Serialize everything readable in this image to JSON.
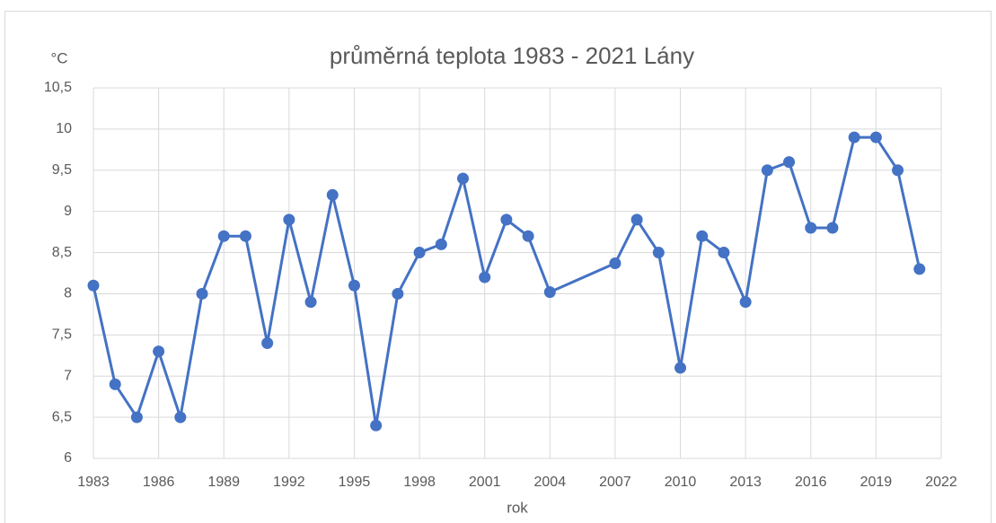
{
  "chart_data": {
    "type": "line",
    "title": "průměrná teplota 1983 - 2021 Lány",
    "y_label": "°C",
    "x_label": "rok",
    "x": [
      1983,
      1984,
      1985,
      1986,
      1987,
      1988,
      1989,
      1990,
      1991,
      1992,
      1993,
      1994,
      1995,
      1996,
      1997,
      1998,
      1999,
      2000,
      2001,
      2002,
      2003,
      2004,
      2007,
      2008,
      2009,
      2010,
      2011,
      2012,
      2013,
      2014,
      2015,
      2016,
      2017,
      2018,
      2019,
      2020,
      2021
    ],
    "series": [
      {
        "name": "průměrná teplota",
        "color": "#4472c4",
        "values": [
          8.1,
          6.9,
          6.5,
          7.3,
          6.5,
          8.0,
          8.7,
          8.7,
          7.4,
          8.9,
          7.9,
          9.2,
          8.1,
          6.4,
          8.0,
          8.5,
          8.6,
          9.4,
          8.2,
          8.9,
          8.7,
          8.02,
          8.37,
          8.9,
          8.5,
          7.1,
          8.7,
          8.5,
          7.9,
          9.5,
          9.6,
          8.8,
          8.8,
          9.9,
          9.9,
          9.5,
          8.3
        ]
      }
    ],
    "xlim": [
      1983,
      2022
    ],
    "xticks": [
      1983,
      1986,
      1989,
      1992,
      1995,
      1998,
      2001,
      2004,
      2007,
      2010,
      2013,
      2016,
      2019,
      2022
    ],
    "ylim": [
      6,
      10.5
    ],
    "yticks": [
      6,
      {
        "value": 6.5,
        "label": "6,5"
      },
      7,
      {
        "value": 7.5,
        "label": "7,5"
      },
      8,
      {
        "value": 8.5,
        "label": "8,5"
      },
      9,
      {
        "value": 9.5,
        "label": "9,5"
      },
      10,
      {
        "value": 10.5,
        "label": "10,5"
      }
    ],
    "grid": true
  }
}
